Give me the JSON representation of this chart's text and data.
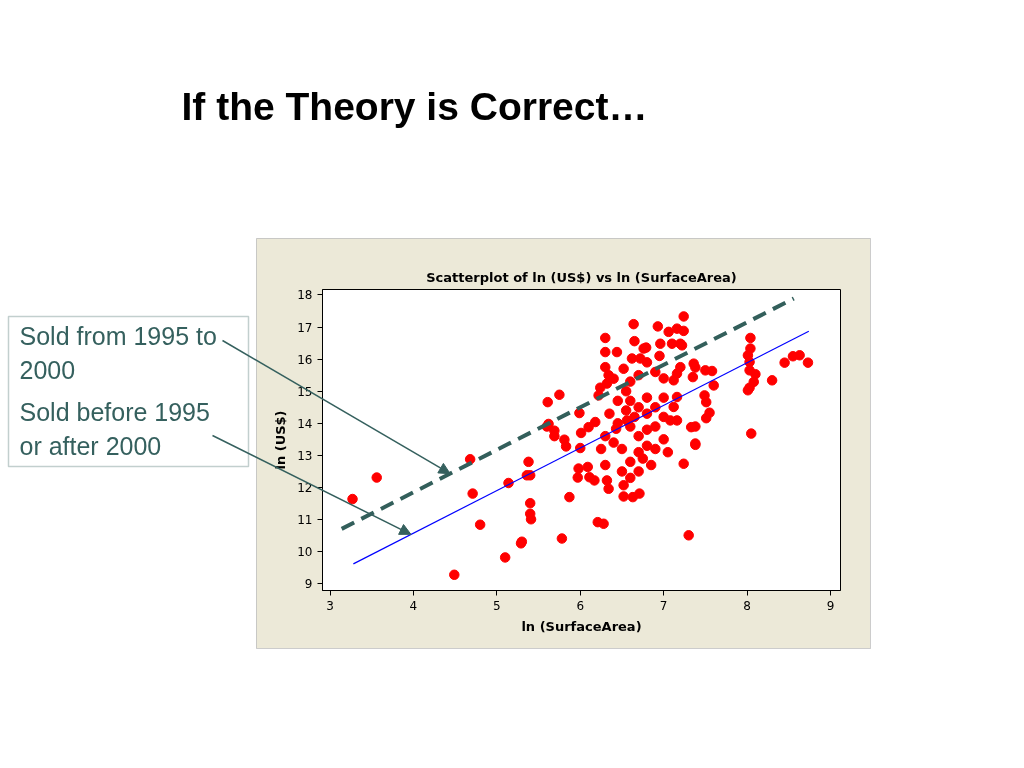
{
  "chart_data": {
    "type": "scatter",
    "title": "If the Theory is Correct…",
    "subtitle": "Scatterplot of ln (US$) vs ln (SurfaceArea)",
    "xlabel": "ln (SurfaceArea)",
    "ylabel": "ln (US$)",
    "xlim": [
      2.91,
      9.12
    ],
    "ylim": [
      8.79,
      18.17
    ],
    "xticks": [
      3,
      4,
      5,
      6,
      7,
      8,
      9
    ],
    "yticks": [
      9,
      10,
      11,
      12,
      13,
      14,
      15,
      16,
      17,
      18
    ],
    "grid": false,
    "series": [
      {
        "color": "#ff0000",
        "marker": "circle",
        "x": [
          3.27,
          3.56,
          4.49,
          4.68,
          4.71,
          4.8,
          5.14,
          5.1,
          5.29,
          5.3,
          5.38,
          5.36,
          5.4,
          5.4,
          5.4,
          5.41,
          5.61,
          5.75,
          5.69,
          5.62,
          5.6,
          5.69,
          5.81,
          5.83,
          5.87,
          5.78,
          5.99,
          6.01,
          6.0,
          5.98,
          5.97,
          6.09,
          6.11,
          6.17,
          6.21,
          6.28,
          6.32,
          6.34,
          6.3,
          6.3,
          6.3,
          6.44,
          6.64,
          6.65,
          6.52,
          6.63,
          6.71,
          6.1,
          6.18,
          6.22,
          6.24,
          6.34,
          6.32,
          6.52,
          6.4,
          6.76,
          6.43,
          6.56,
          7.24,
          6.93,
          7.06,
          7.16,
          7.24,
          6.79,
          6.96,
          7.1,
          7.2,
          6.62,
          6.72,
          7.36,
          7.35,
          7.38,
          7.24,
          6.52,
          7.3,
          7.38,
          7.5,
          7.58,
          7.6,
          7.49,
          7.51,
          7.55,
          7.51,
          7.33,
          7.38,
          7.38,
          7.16,
          7.12,
          7.08,
          7.16,
          7.12,
          7.16,
          7.2,
          7.22,
          8.04,
          8.04,
          8.01,
          8.03,
          8.03,
          8.1,
          8.08,
          8.03,
          8.01,
          8.05,
          8.3,
          8.45,
          8.55,
          8.63,
          8.73,
          6.25,
          6.3,
          6.3,
          6.35,
          6.4,
          6.45,
          6.45,
          6.5,
          6.5,
          6.55,
          6.55,
          6.6,
          6.6,
          6.6,
          6.6,
          6.6,
          6.65,
          6.7,
          6.7,
          6.7,
          6.7,
          6.7,
          6.75,
          6.8,
          6.8,
          6.8,
          6.8,
          6.8,
          6.85,
          6.9,
          6.9,
          6.9,
          6.9,
          6.95,
          7.0,
          7.0,
          7.0,
          7.0,
          7.05
        ],
        "values": [
          11.64,
          12.31,
          9.28,
          12.88,
          11.81,
          10.84,
          12.14,
          9.82,
          10.26,
          10.31,
          12.8,
          12.38,
          12.38,
          11.51,
          11.18,
          11.01,
          14.66,
          14.89,
          13.6,
          13.98,
          13.9,
          13.77,
          13.49,
          13.28,
          11.7,
          10.41,
          14.32,
          13.7,
          13.23,
          12.59,
          12.31,
          12.64,
          12.32,
          12.22,
          10.92,
          10.87,
          12.22,
          11.96,
          16.66,
          16.22,
          15.75,
          16.22,
          17.09,
          16.56,
          11.72,
          11.7,
          11.81,
          13.88,
          14.04,
          14.87,
          15.11,
          15.5,
          15.24,
          15.7,
          15.39,
          16.33,
          13.83,
          14.09,
          17.33,
          17.02,
          16.85,
          16.95,
          16.88,
          16.36,
          16.48,
          16.48,
          16.48,
          16.02,
          16.02,
          15.86,
          15.44,
          13.37,
          12.74,
          12.07,
          10.51,
          15.74,
          15.65,
          15.63,
          15.18,
          14.87,
          14.66,
          14.33,
          14.16,
          13.88,
          13.9,
          13.33,
          14.82,
          14.51,
          14.09,
          14.09,
          15.34,
          15.55,
          15.75,
          16.43,
          16.66,
          16.33,
          16.12,
          15.91,
          15.65,
          15.53,
          15.29,
          15.11,
          15.03,
          13.68,
          15.34,
          15.89,
          16.09,
          16.12,
          15.89,
          13.2,
          12.7,
          13.6,
          14.3,
          13.4,
          14.0,
          14.7,
          12.5,
          13.2,
          14.4,
          15.0,
          12.3,
          12.8,
          13.9,
          14.7,
          15.3,
          14.2,
          12.5,
          13.1,
          13.6,
          14.5,
          15.5,
          12.9,
          13.3,
          13.8,
          14.3,
          14.8,
          15.9,
          12.7,
          13.2,
          13.9,
          14.5,
          15.6,
          16.1,
          13.5,
          14.2,
          14.8,
          15.4,
          13.1
        ]
      },
      {
        "type": "line",
        "color": "#335f5b",
        "line_style": "dashed",
        "x": [
          3.14,
          8.56
        ],
        "values": [
          10.71,
          17.89
        ]
      },
      {
        "type": "line",
        "color": "#0000ff",
        "line_style": "solid",
        "x": [
          3.28,
          8.74
        ],
        "values": [
          9.62,
          16.87
        ]
      }
    ],
    "annotations": [
      {
        "text": "Sold from 1995 to 2000",
        "x": 4.44,
        "y": 12.43
      },
      {
        "text": "Sold before 1995 or after 2000",
        "x": 3.97,
        "y": 10.54
      }
    ]
  }
}
